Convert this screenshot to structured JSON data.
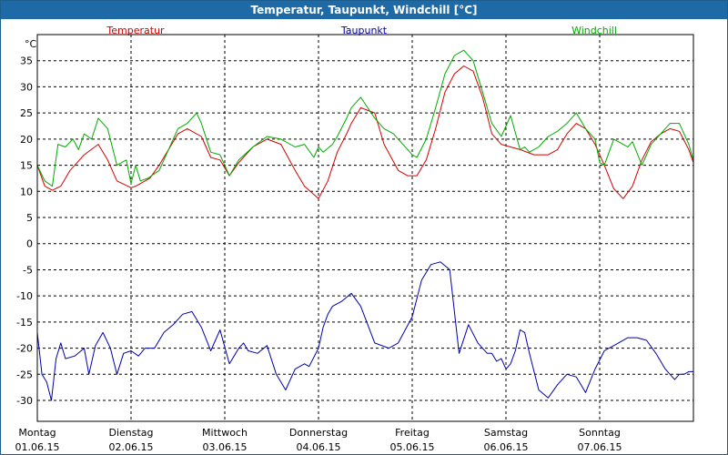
{
  "window": {
    "title": "Temperatur, Taupunkt, Windchill [°C]"
  },
  "colors": {
    "temperature": "#d40000",
    "dewpoint": "#0000aa",
    "windchill": "#00aa00",
    "grid": "#000000"
  },
  "chart_data": {
    "type": "line",
    "title": "Temperatur, Taupunkt, Windchill [°C]",
    "ylabel": "°C",
    "ylim": [
      -34,
      40
    ],
    "yticks": [
      35,
      30,
      25,
      20,
      15,
      10,
      5,
      0,
      -5,
      -10,
      -15,
      -20,
      -25,
      -30
    ],
    "xlim": [
      0,
      7
    ],
    "days": [
      {
        "weekday": "Montag",
        "date": "01.06.15"
      },
      {
        "weekday": "Dienstag",
        "date": "02.06.15"
      },
      {
        "weekday": "Mittwoch",
        "date": "03.06.15"
      },
      {
        "weekday": "Donnerstag",
        "date": "04.06.15"
      },
      {
        "weekday": "Freitag",
        "date": "05.06.15"
      },
      {
        "weekday": "Samstag",
        "date": "06.06.15"
      },
      {
        "weekday": "Sonntag",
        "date": "07.06.15"
      }
    ],
    "series": [
      {
        "name": "Temperatur",
        "key": "temperature",
        "x": [
          0,
          0.08,
          0.16,
          0.25,
          0.35,
          0.5,
          0.65,
          0.75,
          0.85,
          1.0,
          1.05,
          1.1,
          1.2,
          1.3,
          1.4,
          1.5,
          1.6,
          1.75,
          1.85,
          1.95,
          2.05,
          2.15,
          2.3,
          2.45,
          2.6,
          2.75,
          2.85,
          3.0,
          3.1,
          3.2,
          3.3,
          3.35,
          3.45,
          3.6,
          3.7,
          3.85,
          3.95,
          4.05,
          4.15,
          4.25,
          4.35,
          4.45,
          4.55,
          4.65,
          4.75,
          4.85,
          4.95,
          5.05,
          5.15,
          5.3,
          5.45,
          5.55,
          5.65,
          5.75,
          5.85,
          5.95,
          6.05,
          6.15,
          6.25,
          6.35,
          6.45,
          6.55,
          6.65,
          6.75,
          6.85,
          6.95,
          7.0
        ],
        "values": [
          15,
          11,
          10.2,
          11,
          14,
          17,
          19,
          16,
          12,
          10.7,
          11,
          11.5,
          12.5,
          15,
          18,
          21,
          22,
          20.5,
          16.5,
          16,
          13,
          15.5,
          18.5,
          20,
          19,
          14,
          11,
          8.6,
          12,
          17.5,
          21,
          23,
          26,
          25,
          19,
          14,
          13,
          13,
          16,
          22,
          29,
          32.5,
          34,
          33,
          28,
          21,
          19,
          18.5,
          18,
          17,
          17,
          18,
          21,
          23,
          22,
          19,
          15,
          10.5,
          8.6,
          11,
          16,
          19.5,
          21,
          22,
          21.5,
          18,
          15.5
        ]
      },
      {
        "name": "Windchill",
        "key": "windchill",
        "x": [
          0,
          0.08,
          0.16,
          0.22,
          0.3,
          0.38,
          0.44,
          0.5,
          0.58,
          0.65,
          0.75,
          0.85,
          0.95,
          1.0,
          1.05,
          1.1,
          1.18,
          1.3,
          1.4,
          1.5,
          1.6,
          1.7,
          1.75,
          1.85,
          1.95,
          2.05,
          2.15,
          2.3,
          2.45,
          2.6,
          2.75,
          2.85,
          2.95,
          3.0,
          3.05,
          3.15,
          3.2,
          3.3,
          3.35,
          3.45,
          3.6,
          3.7,
          3.8,
          3.9,
          4.0,
          4.05,
          4.15,
          4.25,
          4.35,
          4.45,
          4.55,
          4.65,
          4.75,
          4.85,
          4.95,
          5.05,
          5.15,
          5.2,
          5.25,
          5.35,
          5.45,
          5.55,
          5.65,
          5.75,
          5.85,
          5.95,
          6.0,
          6.05,
          6.15,
          6.25,
          6.3,
          6.35,
          6.45,
          6.55,
          6.65,
          6.75,
          6.85,
          6.95,
          7.0
        ],
        "values": [
          15,
          12,
          11,
          19,
          18.5,
          20,
          18,
          21,
          20,
          24,
          22,
          15,
          16,
          11.5,
          15,
          12,
          12.5,
          14,
          18,
          22,
          23,
          25,
          23,
          17.5,
          17,
          13,
          16,
          18.5,
          20.5,
          20,
          18.5,
          19,
          16.5,
          18.5,
          17.5,
          19,
          20.5,
          24,
          26,
          28,
          24,
          22,
          21,
          19,
          17,
          16.5,
          20,
          26,
          32.5,
          36,
          37,
          35,
          29,
          23,
          20.5,
          24.5,
          18,
          18.5,
          17.5,
          18.5,
          20.5,
          21.5,
          23,
          25,
          22,
          20,
          15.5,
          15,
          20,
          19,
          18.5,
          19.5,
          15,
          19,
          21,
          23,
          23,
          19,
          16
        ]
      },
      {
        "name": "Taupunkt",
        "key": "dewpoint",
        "x": [
          0,
          0.05,
          0.1,
          0.15,
          0.2,
          0.25,
          0.3,
          0.4,
          0.5,
          0.55,
          0.62,
          0.7,
          0.78,
          0.85,
          0.92,
          1.0,
          1.08,
          1.15,
          1.25,
          1.35,
          1.45,
          1.55,
          1.65,
          1.75,
          1.85,
          1.95,
          2.05,
          2.15,
          2.2,
          2.25,
          2.35,
          2.45,
          2.55,
          2.65,
          2.75,
          2.85,
          2.9,
          3.0,
          3.05,
          3.1,
          3.15,
          3.25,
          3.35,
          3.45,
          3.6,
          3.75,
          3.85,
          4.0,
          4.1,
          4.2,
          4.3,
          4.4,
          4.5,
          4.6,
          4.7,
          4.8,
          4.85,
          4.9,
          4.95,
          5.0,
          5.05,
          5.1,
          5.15,
          5.2,
          5.25,
          5.35,
          5.45,
          5.55,
          5.65,
          5.75,
          5.85,
          5.95,
          6.05,
          6.1,
          6.2,
          6.3,
          6.4,
          6.5,
          6.6,
          6.7,
          6.8,
          6.85,
          6.9,
          6.95,
          7.0
        ],
        "values": [
          -17,
          -25,
          -26.5,
          -30,
          -22,
          -19,
          -22,
          -21.5,
          -20,
          -25,
          -19.5,
          -17,
          -20,
          -25,
          -21,
          -20.5,
          -21.5,
          -20,
          -20,
          -17,
          -15.5,
          -13.5,
          -13,
          -16,
          -20.5,
          -16.5,
          -23,
          -20,
          -19,
          -20.5,
          -21,
          -19.5,
          -25,
          -28,
          -24,
          -23,
          -23.5,
          -20,
          -16,
          -13.5,
          -12,
          -11,
          -9.5,
          -12,
          -19,
          -20,
          -19,
          -14,
          -7,
          -4,
          -3.5,
          -5,
          -21,
          -15.5,
          -19,
          -21,
          -21,
          -22.5,
          -22,
          -24,
          -23,
          -20.5,
          -16.5,
          -17,
          -21,
          -28,
          -29.5,
          -27,
          -25,
          -25.5,
          -28.5,
          -24,
          -20.5,
          -20,
          -19,
          -18,
          -18,
          -18.5,
          -21,
          -24,
          -26,
          -25,
          -25,
          -24.5,
          -24.5
        ]
      }
    ]
  }
}
